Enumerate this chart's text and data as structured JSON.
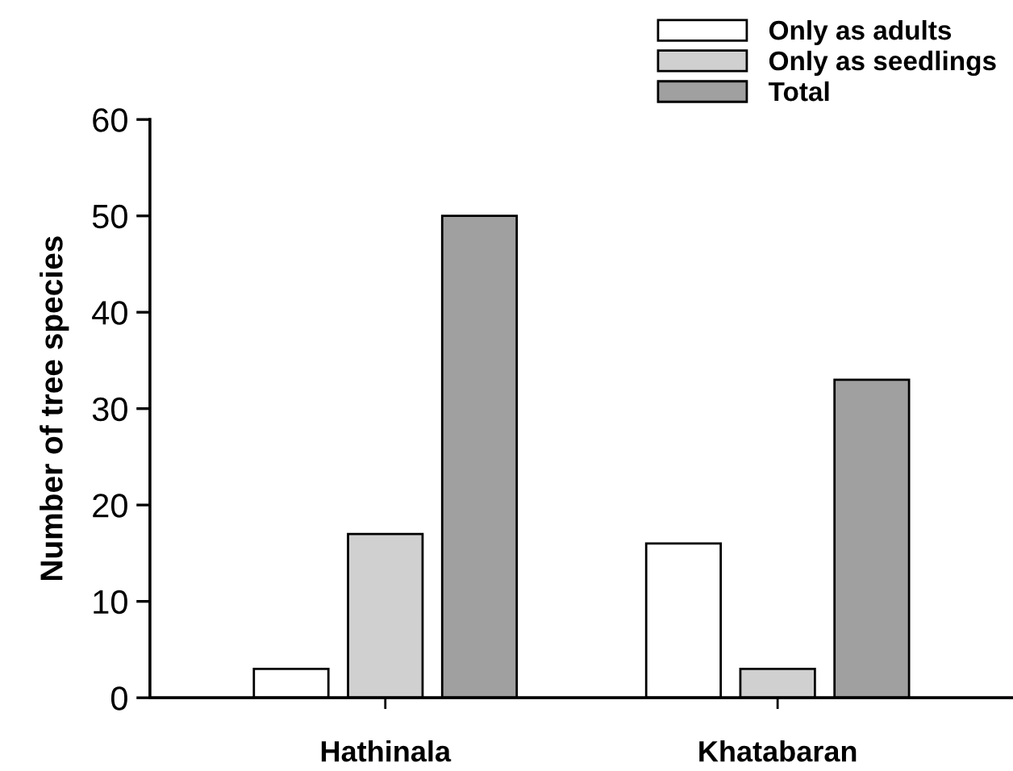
{
  "chart_data": {
    "type": "bar",
    "ylabel": "Number of tree species",
    "categories": [
      "Hathinala",
      "Khatabaran"
    ],
    "series": [
      {
        "name": "Only as adults",
        "color": "#ffffff",
        "values": [
          3,
          16
        ]
      },
      {
        "name": "Only as seedlings",
        "color": "#d0d0d0",
        "values": [
          17,
          3
        ]
      },
      {
        "name": "Total",
        "color": "#a0a0a0",
        "values": [
          50,
          33
        ]
      }
    ],
    "ylim": [
      0,
      60
    ],
    "yticks": [
      0,
      10,
      20,
      30,
      40,
      50,
      60
    ],
    "grid": false,
    "legend": "top right"
  }
}
